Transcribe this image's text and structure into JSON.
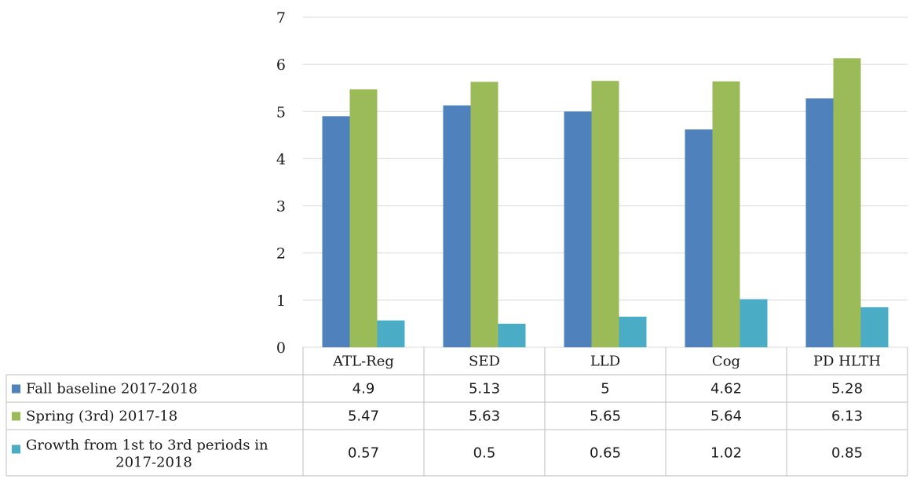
{
  "chart_data": {
    "type": "bar",
    "title": "",
    "xlabel": "",
    "ylabel": "",
    "ylim": [
      0,
      7
    ],
    "yticks": [
      0,
      1,
      2,
      3,
      4,
      5,
      6,
      7
    ],
    "grid": true,
    "legend": "data-table-left",
    "categories": [
      "ATL-Reg",
      "SED",
      "LLD",
      "Cog",
      "PD HLTH"
    ],
    "series": [
      {
        "name": "Fall baseline 2017-2018",
        "color": "#4f81bd",
        "values": [
          4.9,
          5.13,
          5,
          4.62,
          5.28
        ],
        "labels": [
          "4.9",
          "5.13",
          "5",
          "4.62",
          "5.28"
        ]
      },
      {
        "name": "Spring (3rd) 2017-18",
        "color": "#9bbb59",
        "values": [
          5.47,
          5.63,
          5.65,
          5.64,
          6.13
        ],
        "labels": [
          "5.47",
          "5.63",
          "5.65",
          "5.64",
          "6.13"
        ]
      },
      {
        "name": "Growth from 1st to 3rd periods in 2017-2018",
        "color": "#4bacc6",
        "values": [
          0.57,
          0.5,
          0.65,
          1.02,
          0.85
        ],
        "labels": [
          "0.57",
          "0.5",
          "0.65",
          "1.02",
          "0.85"
        ]
      }
    ]
  }
}
